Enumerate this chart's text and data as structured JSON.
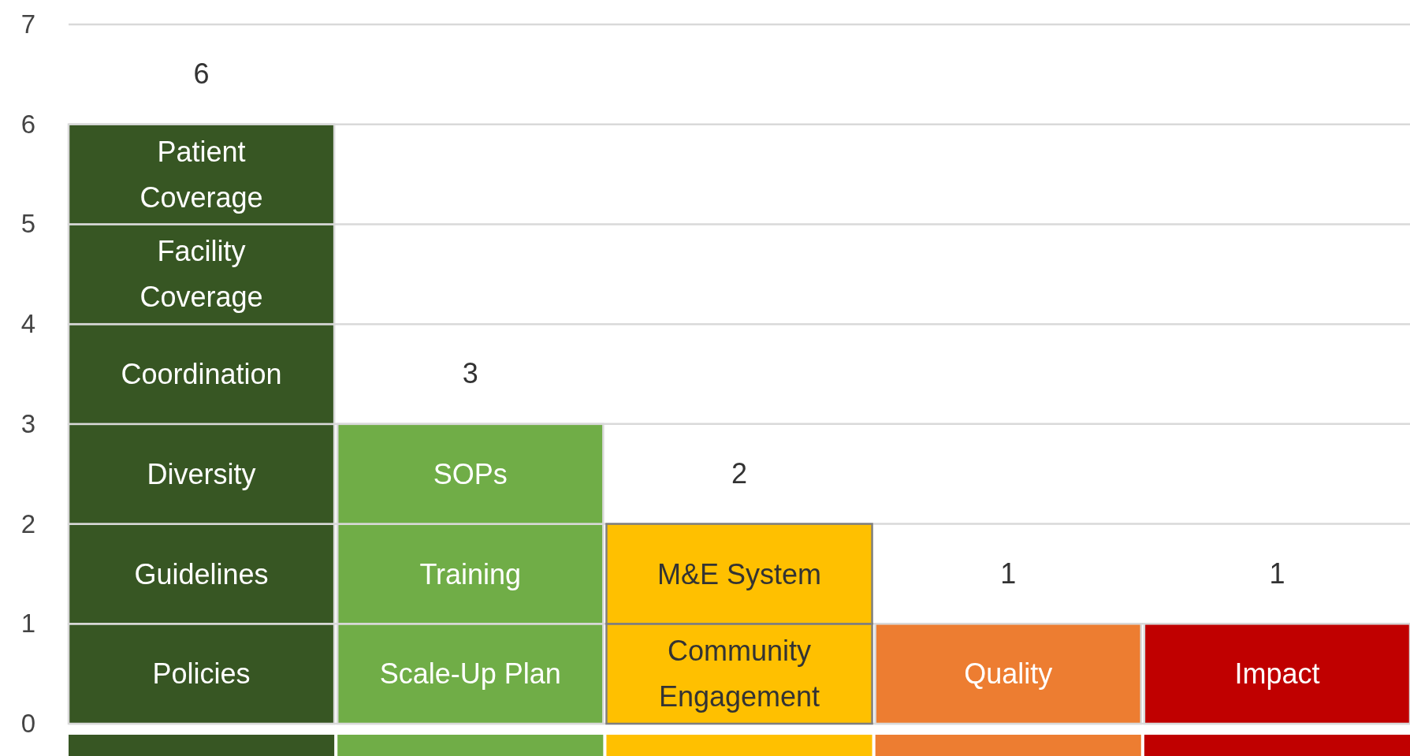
{
  "chart_data": {
    "type": "bar",
    "stacked": true,
    "categories": [
      null,
      null,
      null,
      null,
      null
    ],
    "series": [
      {
        "colors": [
          "#375623",
          "#70ad47",
          "#ffc000",
          "#ed7d31",
          "#c00000"
        ],
        "values": [
          1,
          1,
          1,
          1,
          1
        ],
        "value_labels": [
          "Policies",
          "Scale-Up Plan",
          "Community Engagement",
          "Quality",
          "Impact"
        ]
      },
      {
        "colors": [
          "#375623",
          "#70ad47",
          "#ffc000",
          null,
          null
        ],
        "values": [
          1,
          1,
          1,
          null,
          null
        ],
        "value_labels": [
          "Guidelines",
          "Training",
          "M&E System",
          null,
          null
        ]
      },
      {
        "colors": [
          "#375623",
          "#70ad47",
          null,
          null,
          null
        ],
        "values": [
          1,
          1,
          null,
          null,
          null
        ],
        "value_labels": [
          "Diversity",
          "SOPs",
          null,
          null,
          null
        ]
      },
      {
        "colors": [
          "#375623",
          null,
          null,
          null,
          null
        ],
        "values": [
          1,
          null,
          null,
          null,
          null
        ],
        "value_labels": [
          "Coordination",
          null,
          null,
          null,
          null
        ]
      },
      {
        "colors": [
          "#375623",
          null,
          null,
          null,
          null
        ],
        "values": [
          1,
          null,
          null,
          null,
          null
        ],
        "value_labels": [
          "Facility Coverage",
          null,
          null,
          null,
          null
        ]
      },
      {
        "colors": [
          "#375623",
          null,
          null,
          null,
          null
        ],
        "values": [
          1,
          null,
          null,
          null,
          null
        ],
        "value_labels": [
          "Patient Coverage",
          null,
          null,
          null,
          null
        ]
      }
    ],
    "totals": [
      "6",
      "3",
      "2",
      "1",
      "1"
    ],
    "ylim": [
      0,
      7
    ],
    "yticks": [
      0,
      1,
      2,
      3,
      4,
      5,
      6,
      7
    ],
    "grid": "y"
  }
}
